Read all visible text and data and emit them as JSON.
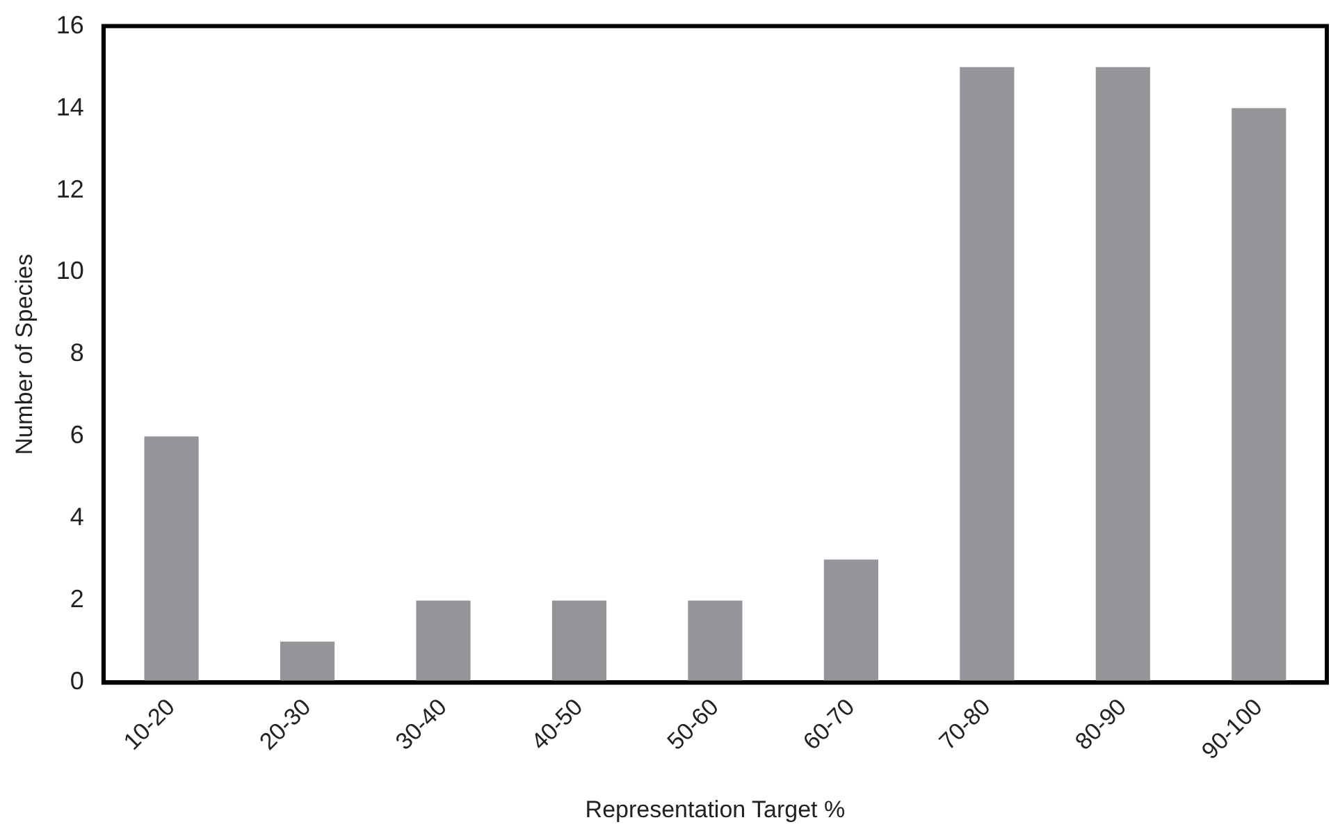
{
  "chart_data": {
    "type": "bar",
    "xlabel": "Representation Target %",
    "ylabel": "Number of Species",
    "categories": [
      "10-20",
      "20-30",
      "30-40",
      "40-50",
      "50-60",
      "60-70",
      "70-80",
      "80-90",
      "90-100"
    ],
    "values": [
      6,
      1,
      2,
      2,
      2,
      3,
      15,
      15,
      14
    ],
    "color": "#939598",
    "ylim": [
      0,
      16
    ],
    "yticks": [
      0,
      2,
      4,
      6,
      8,
      10,
      12,
      14,
      16
    ],
    "grid": false,
    "legend": false
  }
}
